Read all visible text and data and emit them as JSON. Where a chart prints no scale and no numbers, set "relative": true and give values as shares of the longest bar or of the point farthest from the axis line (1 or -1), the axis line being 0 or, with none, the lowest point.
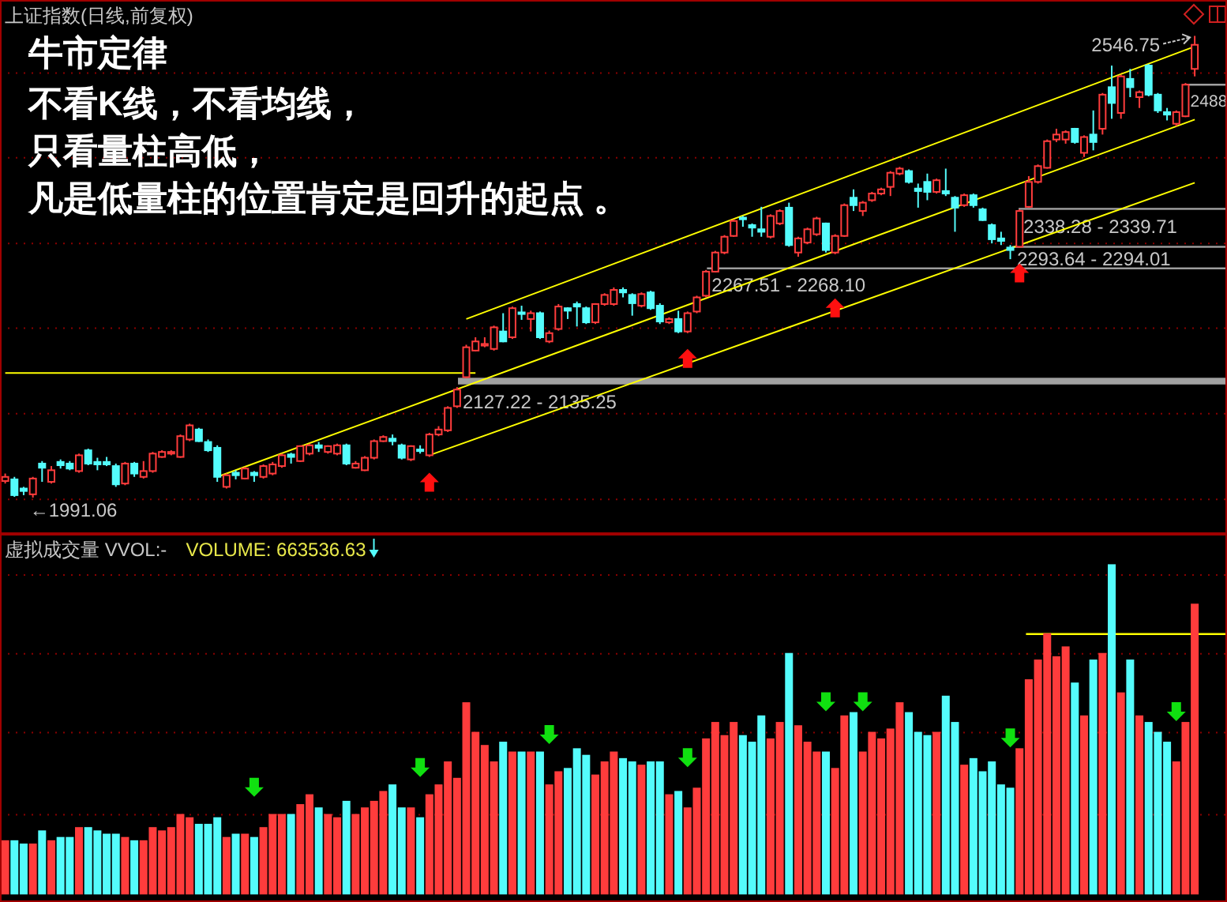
{
  "chart_data": [
    {
      "type": "candlestick",
      "title": "上证指数(日线,前复权)",
      "categories": [
        null,
        null,
        null,
        null,
        null,
        null,
        null,
        null,
        null,
        null,
        null,
        null,
        null,
        null,
        null,
        null,
        null,
        null,
        null,
        null,
        null,
        null,
        null,
        null,
        null,
        null,
        null,
        null,
        null,
        null,
        null,
        null,
        null,
        null,
        null,
        null,
        null,
        null,
        null,
        null,
        null,
        null,
        null,
        null,
        null,
        null,
        null,
        null,
        null,
        null,
        null,
        null,
        null,
        null,
        null,
        null,
        null,
        null,
        null,
        null,
        null,
        null,
        null,
        null,
        null,
        null,
        null,
        null,
        null,
        null,
        null,
        null,
        null,
        null,
        null,
        null,
        null,
        null,
        null,
        null,
        null,
        null,
        null,
        null,
        null,
        null,
        null,
        null,
        null,
        null,
        null,
        null,
        null,
        null,
        null,
        null,
        null,
        null,
        null,
        null,
        null,
        null,
        null,
        null,
        null,
        null,
        null,
        null,
        null,
        null,
        null,
        null,
        null,
        null,
        null,
        null,
        null,
        null,
        null,
        null,
        null,
        null,
        null,
        null,
        null,
        null,
        null,
        null,
        null,
        null
      ],
      "ohlc": [
        [
          2011,
          2020,
          2008,
          2016
        ],
        [
          2013,
          2016,
          1992,
          1994
        ],
        [
          2002,
          2004,
          1994,
          1999
        ],
        [
          1995,
          2016,
          1991.06,
          2014
        ],
        [
          2032,
          2035,
          2010,
          2027
        ],
        [
          2010,
          2029,
          2008,
          2024
        ],
        [
          2034,
          2037,
          2026,
          2030
        ],
        [
          2032,
          2035,
          2024,
          2026
        ],
        [
          2023,
          2044,
          2021,
          2042
        ],
        [
          2048,
          2050,
          2030,
          2032
        ],
        [
          2034,
          2039,
          2024,
          2031
        ],
        [
          2034,
          2040,
          2029,
          2031
        ],
        [
          2029,
          2032,
          2004,
          2007
        ],
        [
          2008,
          2034,
          2006,
          2032
        ],
        [
          2032,
          2034,
          2016,
          2020
        ],
        [
          2016,
          2035,
          2014,
          2023
        ],
        [
          2023,
          2046,
          2021,
          2044
        ],
        [
          2040,
          2048,
          2039,
          2046
        ],
        [
          2044,
          2048,
          2042,
          2046
        ],
        [
          2040,
          2067,
          2039,
          2065
        ],
        [
          2061,
          2080,
          2059,
          2078
        ],
        [
          2073,
          2075,
          2058,
          2059
        ],
        [
          2058,
          2061,
          2046,
          2048
        ],
        [
          2051,
          2054,
          2010,
          2016
        ],
        [
          2004,
          2020,
          2002,
          2018
        ],
        [
          2021,
          2024,
          2013,
          2018
        ],
        [
          2014,
          2028,
          2013,
          2026
        ],
        [
          2021,
          2023,
          2010,
          2018
        ],
        [
          2016,
          2031,
          2014,
          2029
        ],
        [
          2020,
          2034,
          2018,
          2031
        ],
        [
          2029,
          2044,
          2027,
          2042
        ],
        [
          2043,
          2045,
          2032,
          2040
        ],
        [
          2035,
          2054,
          2034,
          2053
        ],
        [
          2044,
          2056,
          2042,
          2054
        ],
        [
          2054,
          2058,
          2046,
          2051
        ],
        [
          2046,
          2054,
          2044,
          2053
        ],
        [
          2044,
          2056,
          2042,
          2054
        ],
        [
          2054,
          2056,
          2030,
          2032
        ],
        [
          2027,
          2035,
          2026,
          2032
        ],
        [
          2024,
          2041,
          2023,
          2039
        ],
        [
          2039,
          2061,
          2037,
          2059
        ],
        [
          2059,
          2066,
          2058,
          2064
        ],
        [
          2062,
          2067,
          2054,
          2059
        ],
        [
          2054,
          2056,
          2037,
          2039
        ],
        [
          2037,
          2054,
          2035,
          2053
        ],
        [
          2049,
          2054,
          2044,
          2047
        ],
        [
          2042,
          2069,
          2040,
          2067
        ],
        [
          2067,
          2077,
          2065,
          2073
        ],
        [
          2072,
          2101,
          2070,
          2099
        ],
        [
          2101,
          2124,
          2099,
          2121
        ],
        [
          2136,
          2175,
          2135,
          2172
        ],
        [
          2168,
          2184,
          2167,
          2179
        ],
        [
          2174,
          2184,
          2172,
          2176
        ],
        [
          2170,
          2198,
          2168,
          2196
        ],
        [
          2191,
          2213,
          2178,
          2179
        ],
        [
          2184,
          2221,
          2182,
          2219
        ],
        [
          2214,
          2222,
          2205,
          2212
        ],
        [
          2206,
          2216,
          2191,
          2213
        ],
        [
          2213,
          2215,
          2182,
          2184
        ],
        [
          2179,
          2192,
          2177,
          2189
        ],
        [
          2194,
          2224,
          2192,
          2221
        ],
        [
          2219,
          2220,
          2206,
          2216
        ],
        [
          2224,
          2227,
          2197,
          2221
        ],
        [
          2219,
          2221,
          2200,
          2202
        ],
        [
          2202,
          2225,
          2200,
          2224
        ],
        [
          2224,
          2237,
          2222,
          2235
        ],
        [
          2224,
          2244,
          2222,
          2241
        ],
        [
          2241,
          2244,
          2232,
          2238
        ],
        [
          2235,
          2237,
          2210,
          2225
        ],
        [
          2222,
          2238,
          2220,
          2236
        ],
        [
          2238,
          2240,
          2217,
          2219
        ],
        [
          2222,
          2225,
          2200,
          2203
        ],
        [
          2202,
          2208,
          2200,
          2206
        ],
        [
          2206,
          2216,
          2189,
          2191
        ],
        [
          2191,
          2215,
          2189,
          2213
        ],
        [
          2215,
          2234,
          2213,
          2232
        ],
        [
          2234,
          2265,
          2232,
          2263
        ],
        [
          2263,
          2288,
          2262,
          2286
        ],
        [
          2286,
          2307,
          2284,
          2305
        ],
        [
          2306,
          2326,
          2305,
          2324
        ],
        [
          2328,
          2330,
          2317,
          2326
        ],
        [
          2319,
          2321,
          2305,
          2316
        ],
        [
          2314,
          2341,
          2305,
          2311
        ],
        [
          2305,
          2332,
          2303,
          2330
        ],
        [
          2321,
          2338,
          2319,
          2336
        ],
        [
          2340,
          2346,
          2293,
          2295
        ],
        [
          2286,
          2305,
          2281,
          2303
        ],
        [
          2298,
          2316,
          2296,
          2314
        ],
        [
          2308,
          2329,
          2306,
          2327
        ],
        [
          2321,
          2322,
          2286,
          2289
        ],
        [
          2286,
          2308,
          2284,
          2306
        ],
        [
          2306,
          2345,
          2305,
          2343
        ],
        [
          2352,
          2362,
          2336,
          2343
        ],
        [
          2336,
          2348,
          2330,
          2346
        ],
        [
          2349,
          2359,
          2347,
          2357
        ],
        [
          2357,
          2364,
          2355,
          2362
        ],
        [
          2365,
          2384,
          2354,
          2382
        ],
        [
          2381,
          2389,
          2379,
          2387
        ],
        [
          2384,
          2386,
          2369,
          2371
        ],
        [
          2363,
          2369,
          2340,
          2360
        ],
        [
          2371,
          2381,
          2349,
          2359
        ],
        [
          2359,
          2375,
          2357,
          2373
        ],
        [
          2360,
          2387,
          2354,
          2357
        ],
        [
          2352,
          2354,
          2311,
          2340
        ],
        [
          2343,
          2357,
          2341,
          2355
        ],
        [
          2355,
          2357,
          2340,
          2343
        ],
        [
          2338,
          2340,
          2324,
          2325
        ],
        [
          2319,
          2321,
          2297,
          2302
        ],
        [
          2303,
          2311,
          2295,
          2300
        ],
        [
          2292,
          2295,
          2278,
          2289
        ],
        [
          2293,
          2338,
          2292,
          2336
        ],
        [
          2341,
          2378,
          2340,
          2371
        ],
        [
          2371,
          2392,
          2369,
          2390
        ],
        [
          2388,
          2422,
          2387,
          2420
        ],
        [
          2422,
          2435,
          2419,
          2428
        ],
        [
          2422,
          2433,
          2417,
          2431
        ],
        [
          2435,
          2436,
          2417,
          2419
        ],
        [
          2406,
          2427,
          2401,
          2425
        ],
        [
          2428,
          2457,
          2409,
          2419
        ],
        [
          2435,
          2478,
          2428,
          2476
        ],
        [
          2485,
          2511,
          2447,
          2466
        ],
        [
          2454,
          2500,
          2447,
          2498
        ],
        [
          2495,
          2507,
          2473,
          2485
        ],
        [
          2473,
          2481,
          2460,
          2479
        ],
        [
          2511,
          2513,
          2474,
          2476
        ],
        [
          2476,
          2478,
          2454,
          2457
        ],
        [
          2455,
          2460,
          2445,
          2452
        ],
        [
          2441,
          2457,
          2438,
          2455
        ],
        [
          2450,
          2490,
          2449,
          2488
        ],
        [
          2507,
          2546.75,
          2498,
          2536
        ]
      ],
      "colors": [
        "#ff3c3c",
        "#54fcfc",
        "#54fcfc",
        "#ff3c3c",
        "#54fcfc",
        "#ff3c3c",
        "#54fcfc",
        "#54fcfc",
        "#ff3c3c",
        "#54fcfc",
        "#54fcfc",
        "#54fcfc",
        "#54fcfc",
        "#ff3c3c",
        "#54fcfc",
        "#ff3c3c",
        "#ff3c3c",
        "#ff3c3c",
        "#ff3c3c",
        "#ff3c3c",
        "#ff3c3c",
        "#54fcfc",
        "#54fcfc",
        "#54fcfc",
        "#ff3c3c",
        "#54fcfc",
        "#ff3c3c",
        "#54fcfc",
        "#ff3c3c",
        "#ff3c3c",
        "#ff3c3c",
        "#54fcfc",
        "#ff3c3c",
        "#ff3c3c",
        "#54fcfc",
        "#ff3c3c",
        "#ff3c3c",
        "#54fcfc",
        "#ff3c3c",
        "#ff3c3c",
        "#ff3c3c",
        "#ff3c3c",
        "#54fcfc",
        "#54fcfc",
        "#ff3c3c",
        "#54fcfc",
        "#ff3c3c",
        "#ff3c3c",
        "#ff3c3c",
        "#ff3c3c",
        "#ff3c3c",
        "#ff3c3c",
        "#ff3c3c",
        "#ff3c3c",
        "#54fcfc",
        "#ff3c3c",
        "#54fcfc",
        "#ff3c3c",
        "#54fcfc",
        "#ff3c3c",
        "#ff3c3c",
        "#54fcfc",
        "#54fcfc",
        "#54fcfc",
        "#ff3c3c",
        "#ff3c3c",
        "#ff3c3c",
        "#54fcfc",
        "#54fcfc",
        "#ff3c3c",
        "#54fcfc",
        "#54fcfc",
        "#ff3c3c",
        "#54fcfc",
        "#ff3c3c",
        "#ff3c3c",
        "#ff3c3c",
        "#ff3c3c",
        "#ff3c3c",
        "#ff3c3c",
        "#54fcfc",
        "#54fcfc",
        "#54fcfc",
        "#ff3c3c",
        "#ff3c3c",
        "#54fcfc",
        "#ff3c3c",
        "#ff3c3c",
        "#ff3c3c",
        "#54fcfc",
        "#ff3c3c",
        "#ff3c3c",
        "#54fcfc",
        "#ff3c3c",
        "#ff3c3c",
        "#ff3c3c",
        "#ff3c3c",
        "#ff3c3c",
        "#54fcfc",
        "#54fcfc",
        "#54fcfc",
        "#ff3c3c",
        "#54fcfc",
        "#54fcfc",
        "#ff3c3c",
        "#54fcfc",
        "#54fcfc",
        "#54fcfc",
        "#54fcfc",
        "#54fcfc",
        "#ff3c3c",
        "#ff3c3c",
        "#ff3c3c",
        "#ff3c3c",
        "#ff3c3c",
        "#ff3c3c",
        "#54fcfc",
        "#ff3c3c",
        "#54fcfc",
        "#ff3c3c",
        "#54fcfc",
        "#ff3c3c",
        "#54fcfc",
        "#ff3c3c",
        "#54fcfc",
        "#54fcfc",
        "#54fcfc",
        "#ff3c3c",
        "#ff3c3c",
        "#ff3c3c"
      ],
      "series": [
        {
          "type": "line",
          "color": "#ffff00",
          "values": [
            2141,
            null,
            null,
            null,
            null,
            null,
            null,
            null,
            null,
            null,
            null,
            null,
            null,
            null,
            null,
            null,
            null,
            null,
            null,
            null,
            null,
            null,
            null,
            null,
            null,
            null,
            null,
            null,
            null,
            null,
            null,
            null,
            null,
            null,
            null,
            null,
            null,
            null,
            null,
            null,
            null,
            null,
            null,
            null,
            null,
            null,
            null,
            null,
            null,
            null,
            null,
            2141,
            null,
            null,
            null,
            null,
            null,
            null,
            null,
            null,
            null,
            null,
            null,
            null,
            null,
            null,
            null,
            null,
            null,
            null,
            null,
            null,
            null,
            null,
            null,
            null,
            null,
            null,
            null,
            null,
            null,
            null,
            null,
            null,
            null,
            null,
            null,
            null,
            null,
            null,
            null,
            null,
            null,
            null,
            null,
            null,
            null,
            null,
            null,
            null,
            null,
            null,
            null,
            null,
            null,
            null,
            null,
            null,
            null,
            null,
            null,
            null,
            null,
            null,
            null,
            null,
            null,
            null,
            null,
            null,
            null,
            null,
            null,
            null,
            null,
            null,
            null,
            null,
            null,
            null
          ]
        },
        {
          "type": "line",
          "color": "#ffff00",
          "values": [
            null,
            null,
            null,
            null,
            null,
            null,
            null,
            null,
            null,
            null,
            null,
            null,
            null,
            null,
            null,
            null,
            null,
            null,
            null,
            null,
            null,
            null,
            null,
            null,
            null,
            null,
            null,
            null,
            null,
            null,
            null,
            null,
            null,
            null,
            null,
            null,
            null,
            null,
            null,
            null,
            null,
            null,
            null,
            null,
            null,
            null,
            null,
            null,
            null,
            null,
            2206,
            null,
            null,
            null,
            null,
            null,
            null,
            null,
            null,
            null,
            null,
            null,
            null,
            null,
            null,
            null,
            null,
            null,
            null,
            null,
            null,
            null,
            null,
            null,
            null,
            null,
            null,
            null,
            null,
            null,
            null,
            null,
            null,
            null,
            null,
            null,
            null,
            null,
            null,
            null,
            null,
            null,
            null,
            null,
            null,
            null,
            null,
            null,
            null,
            null,
            null,
            null,
            null,
            null,
            null,
            null,
            null,
            null,
            null,
            null,
            null,
            null,
            null,
            null,
            null,
            null,
            null,
            null,
            null,
            null,
            null,
            null,
            null,
            null,
            null,
            null,
            null,
            null,
            null,
            2534
          ]
        },
        {
          "type": "line",
          "color": "#ffff00",
          "values": [
            null,
            null,
            null,
            null,
            null,
            null,
            null,
            null,
            null,
            null,
            null,
            null,
            null,
            null,
            null,
            null,
            null,
            null,
            null,
            null,
            null,
            null,
            null,
            2016,
            null,
            null,
            null,
            null,
            null,
            null,
            null,
            null,
            null,
            null,
            null,
            null,
            null,
            null,
            null,
            null,
            null,
            null,
            null,
            null,
            null,
            null,
            null,
            null,
            null,
            null,
            null,
            null,
            null,
            null,
            null,
            null,
            null,
            null,
            null,
            null,
            null,
            null,
            null,
            null,
            null,
            null,
            null,
            null,
            null,
            null,
            null,
            null,
            null,
            null,
            null,
            null,
            null,
            null,
            null,
            null,
            null,
            null,
            null,
            null,
            null,
            null,
            null,
            null,
            null,
            null,
            null,
            null,
            null,
            null,
            null,
            null,
            null,
            null,
            null,
            null,
            null,
            null,
            null,
            null,
            null,
            null,
            null,
            null,
            null,
            null,
            null,
            null,
            null,
            null,
            null,
            null,
            null,
            null,
            null,
            null,
            null,
            null,
            null,
            null,
            null,
            null,
            null,
            null,
            null,
            2446
          ]
        },
        {
          "type": "line",
          "color": "#ffff00",
          "values": [
            null,
            null,
            null,
            null,
            null,
            null,
            null,
            null,
            null,
            null,
            null,
            null,
            null,
            null,
            null,
            null,
            null,
            null,
            null,
            null,
            null,
            null,
            null,
            null,
            null,
            null,
            null,
            null,
            null,
            null,
            null,
            null,
            null,
            null,
            null,
            null,
            null,
            null,
            null,
            null,
            null,
            null,
            null,
            null,
            null,
            null,
            2042,
            null,
            null,
            null,
            null,
            null,
            null,
            null,
            null,
            null,
            null,
            null,
            null,
            null,
            null,
            null,
            null,
            null,
            null,
            null,
            null,
            null,
            null,
            null,
            null,
            null,
            null,
            null,
            null,
            null,
            null,
            null,
            null,
            null,
            null,
            null,
            null,
            null,
            null,
            null,
            null,
            null,
            null,
            null,
            null,
            null,
            null,
            null,
            null,
            null,
            null,
            null,
            null,
            null,
            null,
            null,
            null,
            null,
            null,
            null,
            null,
            null,
            null,
            null,
            null,
            null,
            null,
            null,
            null,
            null,
            null,
            null,
            null,
            null,
            null,
            null,
            null,
            null,
            null,
            null,
            null,
            null,
            null,
            2370
          ]
        }
      ],
      "bands": [
        {
          "axis": "y",
          "from": 2127.22,
          "to": 2135.25,
          "label": "2127.22 - 2135.25",
          "color": "#a0a0a0"
        },
        {
          "axis": "y",
          "from": 2267.51,
          "to": 2268.1,
          "label": "2267.51 - 2268.10",
          "color": "#a0a0a0"
        },
        {
          "axis": "y",
          "from": 2338.28,
          "to": 2339.71,
          "label": "2338.28 - 2339.71",
          "color": "#a0a0a0"
        },
        {
          "axis": "y",
          "from": 2293.64,
          "to": 2294.01,
          "label": "2293.64 - 2294.01",
          "color": "#a0a0a0"
        }
      ],
      "ref_lines": [
        {
          "axis": "y",
          "value": 2488,
          "label": "2488",
          "color": "#a0a0a0"
        },
        {
          "axis": "y",
          "value": 2502,
          "color": "#8a0000",
          "line_style": "dotted"
        },
        {
          "axis": "y",
          "value": 2400,
          "color": "#8a0000",
          "line_style": "dotted"
        },
        {
          "axis": "y",
          "value": 2297,
          "color": "#8a0000",
          "line_style": "dotted"
        },
        {
          "axis": "y",
          "value": 2195,
          "color": "#8a0000",
          "line_style": "dotted"
        },
        {
          "axis": "y",
          "value": 2092,
          "color": "#8a0000",
          "line_style": "dotted"
        },
        {
          "axis": "y",
          "value": 1989,
          "color": "#8a0000",
          "line_style": "dotted"
        }
      ],
      "annotations": [
        "牛市定律",
        "不看K线，不看均线，",
        "只看量柱高低，",
        "凡是低量柱的位置肯定是回升的起点 。",
        "←1991.06",
        "2546.75"
      ]
    },
    {
      "type": "bar",
      "title": "虚拟成交量 VVOL:-",
      "subtitle": "VOLUME: 663536.63",
      "relative": true,
      "categories": [
        null,
        null,
        null,
        null,
        null,
        null,
        null,
        null,
        null,
        null,
        null,
        null,
        null,
        null,
        null,
        null,
        null,
        null,
        null,
        null,
        null,
        null,
        null,
        null,
        null,
        null,
        null,
        null,
        null,
        null,
        null,
        null,
        null,
        null,
        null,
        null,
        null,
        null,
        null,
        null,
        null,
        null,
        null,
        null,
        null,
        null,
        null,
        null,
        null,
        null,
        null,
        null,
        null,
        null,
        null,
        null,
        null,
        null,
        null,
        null,
        null,
        null,
        null,
        null,
        null,
        null,
        null,
        null,
        null,
        null,
        null,
        null,
        null,
        null,
        null,
        null,
        null,
        null,
        null,
        null,
        null,
        null,
        null,
        null,
        null,
        null,
        null,
        null,
        null,
        null,
        null,
        null,
        null,
        null,
        null,
        null,
        null,
        null,
        null,
        null,
        null,
        null,
        null,
        null,
        null,
        null,
        null,
        null,
        null,
        null,
        null,
        null,
        null,
        null,
        null,
        null,
        null,
        null,
        null,
        null,
        null,
        null,
        null,
        null,
        null,
        null,
        null,
        null,
        null,
        null
      ],
      "values": [
        0.16,
        0.16,
        0.15,
        0.15,
        0.19,
        0.16,
        0.17,
        0.17,
        0.2,
        0.2,
        0.19,
        0.18,
        0.18,
        0.17,
        0.16,
        0.16,
        0.2,
        0.19,
        0.2,
        0.24,
        0.23,
        0.21,
        0.21,
        0.23,
        0.17,
        0.18,
        0.18,
        0.17,
        0.2,
        0.24,
        0.24,
        0.24,
        0.27,
        0.3,
        0.26,
        0.24,
        0.23,
        0.28,
        0.24,
        0.26,
        0.28,
        0.31,
        0.33,
        0.26,
        0.26,
        0.23,
        0.3,
        0.33,
        0.4,
        0.35,
        0.58,
        0.49,
        0.45,
        0.4,
        0.46,
        0.43,
        0.43,
        0.43,
        0.43,
        0.33,
        0.37,
        0.38,
        0.44,
        0.42,
        0.36,
        0.4,
        0.43,
        0.41,
        0.4,
        0.39,
        0.4,
        0.4,
        0.3,
        0.31,
        0.26,
        0.32,
        0.47,
        0.52,
        0.48,
        0.52,
        0.48,
        0.46,
        0.54,
        0.47,
        0.52,
        0.73,
        0.51,
        0.46,
        0.43,
        0.43,
        0.38,
        0.54,
        0.55,
        0.43,
        0.49,
        0.47,
        0.5,
        0.58,
        0.55,
        0.49,
        0.48,
        0.49,
        0.6,
        0.52,
        0.39,
        0.41,
        0.37,
        0.4,
        0.33,
        0.32,
        0.44,
        0.65,
        0.71,
        0.79,
        0.72,
        0.75,
        0.64,
        0.54,
        0.71,
        0.73,
        1,
        0.61,
        0.71,
        0.54,
        0.52,
        0.49,
        0.46,
        0.4,
        0.52,
        0.88
      ],
      "colors": [
        "#ff3c3c",
        "#54fcfc",
        "#54fcfc",
        "#ff3c3c",
        "#54fcfc",
        "#ff3c3c",
        "#54fcfc",
        "#54fcfc",
        "#ff3c3c",
        "#54fcfc",
        "#54fcfc",
        "#54fcfc",
        "#54fcfc",
        "#ff3c3c",
        "#54fcfc",
        "#ff3c3c",
        "#ff3c3c",
        "#ff3c3c",
        "#ff3c3c",
        "#ff3c3c",
        "#ff3c3c",
        "#54fcfc",
        "#54fcfc",
        "#54fcfc",
        "#ff3c3c",
        "#54fcfc",
        "#ff3c3c",
        "#54fcfc",
        "#ff3c3c",
        "#ff3c3c",
        "#ff3c3c",
        "#54fcfc",
        "#ff3c3c",
        "#ff3c3c",
        "#54fcfc",
        "#ff3c3c",
        "#ff3c3c",
        "#54fcfc",
        "#ff3c3c",
        "#ff3c3c",
        "#ff3c3c",
        "#ff3c3c",
        "#54fcfc",
        "#54fcfc",
        "#ff3c3c",
        "#54fcfc",
        "#ff3c3c",
        "#ff3c3c",
        "#ff3c3c",
        "#ff3c3c",
        "#ff3c3c",
        "#ff3c3c",
        "#ff3c3c",
        "#ff3c3c",
        "#54fcfc",
        "#ff3c3c",
        "#54fcfc",
        "#ff3c3c",
        "#54fcfc",
        "#ff3c3c",
        "#ff3c3c",
        "#54fcfc",
        "#54fcfc",
        "#54fcfc",
        "#ff3c3c",
        "#ff3c3c",
        "#ff3c3c",
        "#54fcfc",
        "#54fcfc",
        "#ff3c3c",
        "#54fcfc",
        "#54fcfc",
        "#ff3c3c",
        "#54fcfc",
        "#ff3c3c",
        "#ff3c3c",
        "#ff3c3c",
        "#ff3c3c",
        "#ff3c3c",
        "#ff3c3c",
        "#54fcfc",
        "#54fcfc",
        "#54fcfc",
        "#ff3c3c",
        "#ff3c3c",
        "#54fcfc",
        "#ff3c3c",
        "#ff3c3c",
        "#ff3c3c",
        "#54fcfc",
        "#ff3c3c",
        "#ff3c3c",
        "#54fcfc",
        "#ff3c3c",
        "#ff3c3c",
        "#ff3c3c",
        "#ff3c3c",
        "#ff3c3c",
        "#54fcfc",
        "#54fcfc",
        "#54fcfc",
        "#ff3c3c",
        "#54fcfc",
        "#54fcfc",
        "#ff3c3c",
        "#54fcfc",
        "#54fcfc",
        "#54fcfc",
        "#54fcfc",
        "#54fcfc",
        "#ff3c3c",
        "#ff3c3c",
        "#ff3c3c",
        "#ff3c3c",
        "#ff3c3c",
        "#ff3c3c",
        "#54fcfc",
        "#ff3c3c",
        "#54fcfc",
        "#ff3c3c",
        "#54fcfc",
        "#ff3c3c",
        "#54fcfc",
        "#ff3c3c",
        "#54fcfc",
        "#54fcfc",
        "#54fcfc",
        "#ff3c3c",
        "#ff3c3c",
        "#ff3c3c"
      ],
      "ref_lines": [
        {
          "axis": "y",
          "value": 0.79,
          "color": "#ffff00"
        },
        {
          "axis": "y",
          "value": 0.97,
          "color": "#8a0000",
          "line_style": "dotted"
        },
        {
          "axis": "y",
          "value": 0.73,
          "color": "#8a0000",
          "line_style": "dotted"
        },
        {
          "axis": "y",
          "value": 0.49,
          "color": "#8a0000",
          "line_style": "dotted"
        },
        {
          "axis": "y",
          "value": 0.24,
          "color": "#8a0000",
          "line_style": "dotted"
        }
      ]
    }
  ]
}
